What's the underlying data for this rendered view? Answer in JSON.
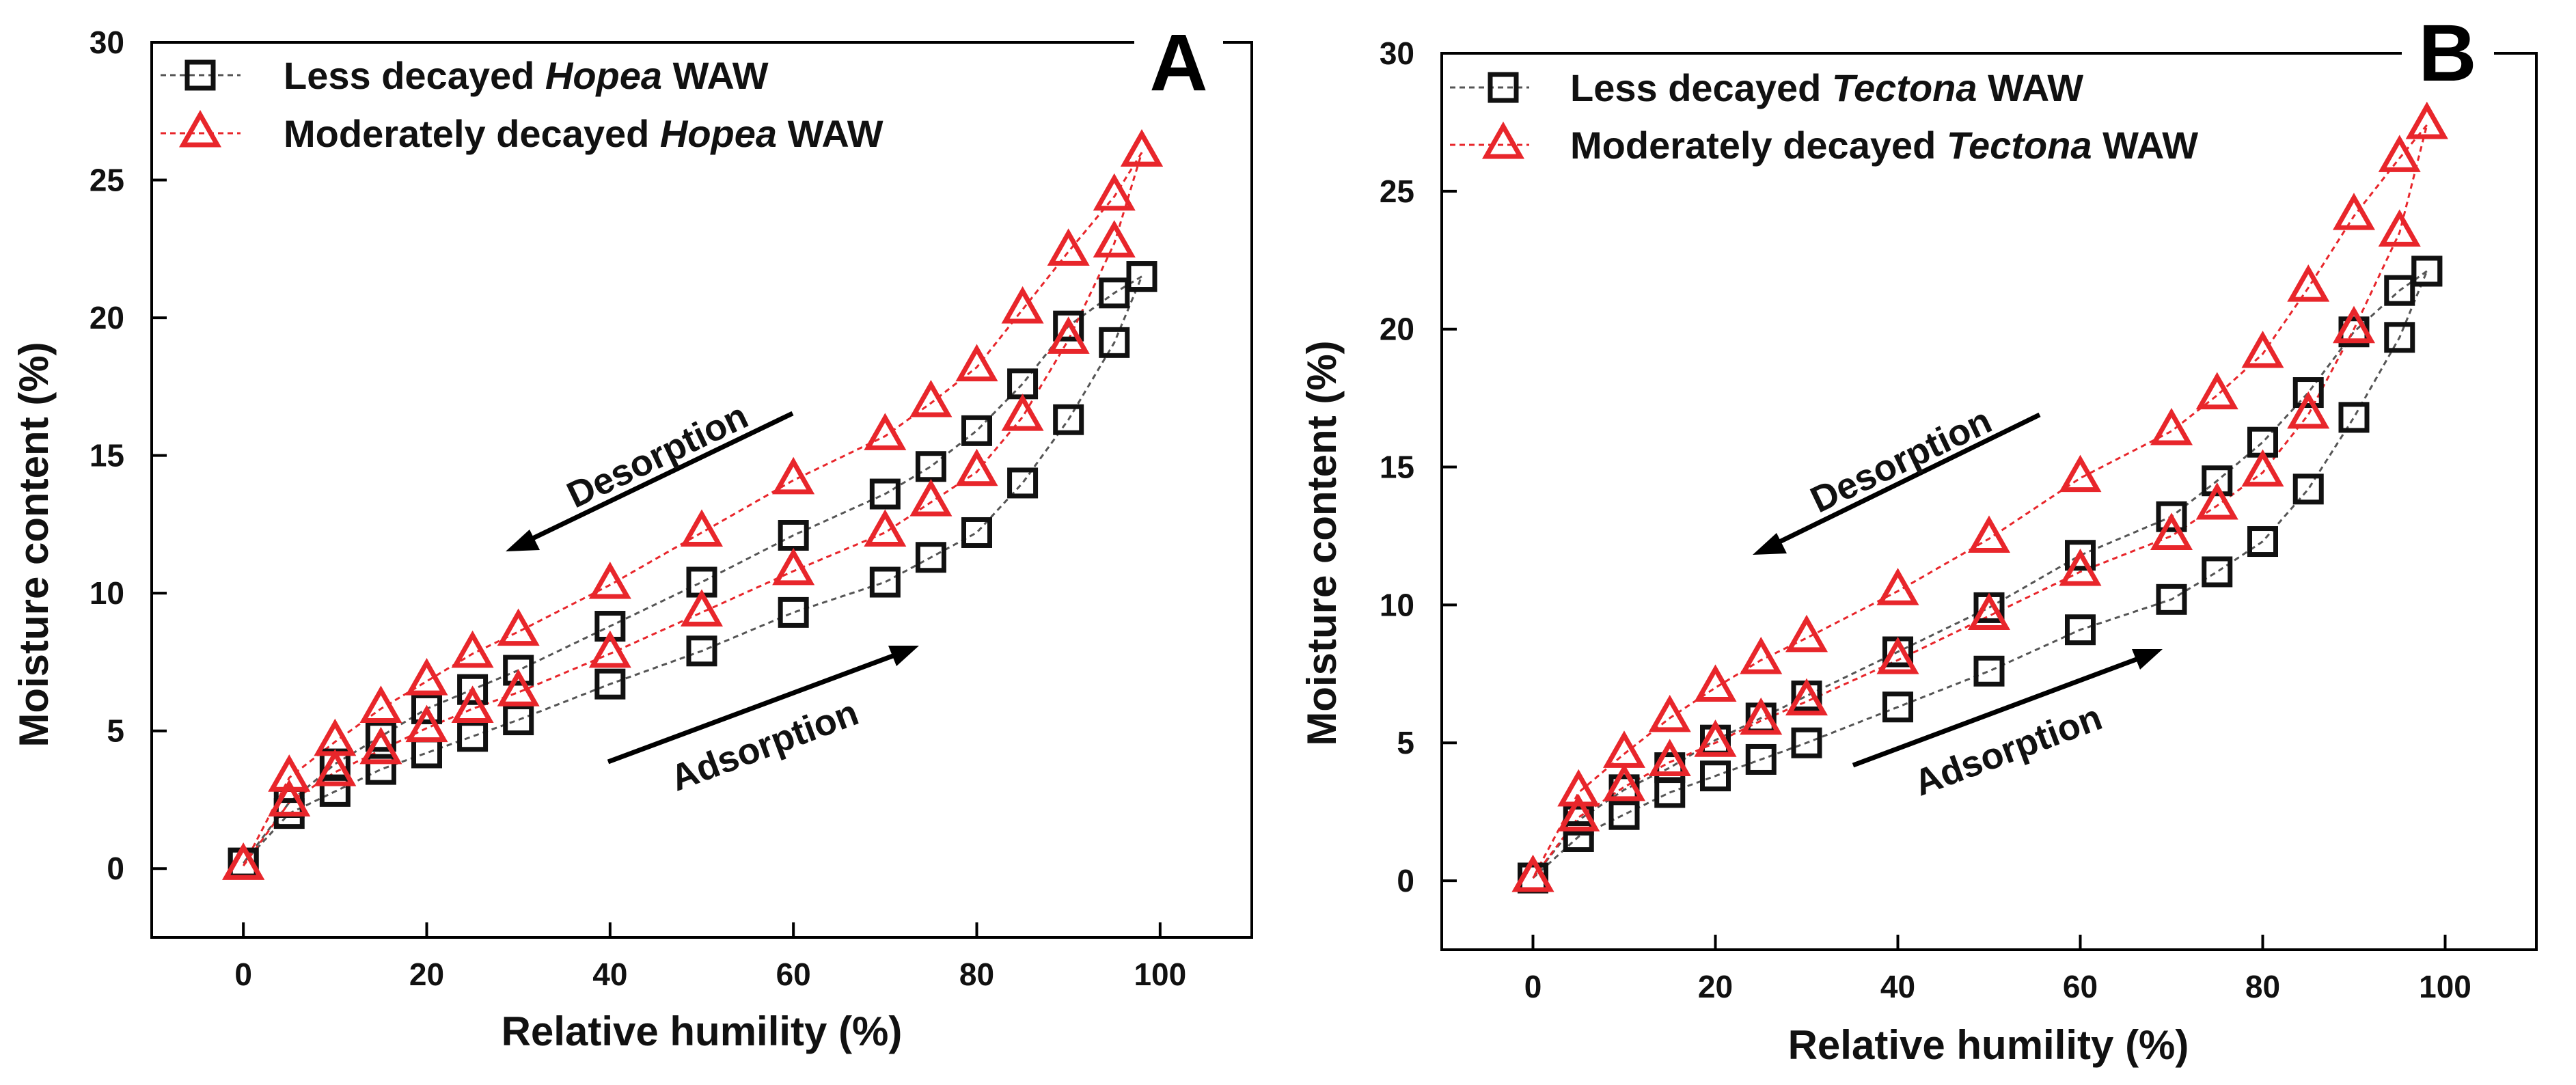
{
  "chart_data": [
    {
      "type": "scatter",
      "panel_label": "A",
      "xlabel": "Relative humility (%)",
      "ylabel": "Moisture content (%)",
      "xlim": [
        -10,
        110
      ],
      "ylim": [
        -2.5,
        30
      ],
      "x_ticks": [
        0,
        20,
        40,
        60,
        80,
        100
      ],
      "y_ticks": [
        0,
        5,
        10,
        15,
        20,
        25,
        30
      ],
      "grid": false,
      "legend_position": "top-left",
      "annotations": [
        {
          "text": "Desorption",
          "direction": "decreasing humidity"
        },
        {
          "text": "Adsorption",
          "direction": "increasing humidity"
        }
      ],
      "series": [
        {
          "legend_pre": "Less decayed ",
          "legend_italic": "Hopea",
          "legend_post": " WAW",
          "marker": "square",
          "color": "#111111",
          "line_color": "#555555",
          "adsorption": {
            "x": [
              0,
              5,
              10,
              15,
              20,
              25,
              30,
              40,
              50,
              60,
              70,
              75,
              80,
              85,
              90,
              95,
              98
            ],
            "y": [
              0.2,
              2.0,
              2.8,
              3.6,
              4.2,
              4.8,
              5.4,
              6.7,
              7.9,
              9.3,
              10.4,
              11.3,
              12.2,
              14.0,
              16.3,
              19.1,
              21.5
            ]
          },
          "desorption": {
            "x": [
              98,
              95,
              90,
              85,
              80,
              75,
              70,
              60,
              50,
              40,
              30,
              25,
              20,
              15,
              10,
              5,
              0
            ],
            "y": [
              21.5,
              20.9,
              19.7,
              17.6,
              15.9,
              14.6,
              13.6,
              12.1,
              10.4,
              8.8,
              7.2,
              6.5,
              5.8,
              4.8,
              3.8,
              2.4,
              0.2
            ]
          }
        },
        {
          "legend_pre": "Moderately decayed ",
          "legend_italic": "Hopea",
          "legend_post": " WAW",
          "marker": "triangle",
          "color": "#e8262b",
          "line_color": "#e8262b",
          "adsorption": {
            "x": [
              0,
              5,
              10,
              15,
              20,
              25,
              30,
              40,
              50,
              60,
              70,
              75,
              80,
              85,
              90,
              95,
              98
            ],
            "y": [
              0.1,
              2.4,
              3.5,
              4.3,
              5.1,
              5.8,
              6.4,
              7.8,
              9.3,
              10.8,
              12.2,
              13.3,
              14.4,
              16.4,
              19.2,
              22.7,
              26.0
            ]
          },
          "desorption": {
            "x": [
              98,
              95,
              90,
              85,
              80,
              75,
              70,
              60,
              50,
              40,
              30,
              25,
              20,
              15,
              10,
              5,
              0
            ],
            "y": [
              26.0,
              24.4,
              22.4,
              20.3,
              18.2,
              16.9,
              15.7,
              14.1,
              12.2,
              10.3,
              8.6,
              7.8,
              6.8,
              5.8,
              4.6,
              3.3,
              0.1
            ]
          }
        }
      ]
    },
    {
      "type": "scatter",
      "panel_label": "B",
      "xlabel": "Relative humility (%)",
      "ylabel": "Moisture content (%)",
      "xlim": [
        -10,
        110
      ],
      "ylim": [
        -2.5,
        30
      ],
      "x_ticks": [
        0,
        20,
        40,
        60,
        80,
        100
      ],
      "y_ticks": [
        0,
        5,
        10,
        15,
        20,
        25,
        30
      ],
      "grid": false,
      "legend_position": "top-left",
      "annotations": [
        {
          "text": "Desorption",
          "direction": "decreasing humidity"
        },
        {
          "text": "Adsorption",
          "direction": "increasing humidity"
        }
      ],
      "series": [
        {
          "legend_pre": "Less decayed ",
          "legend_italic": "Tectona",
          "legend_post": " WAW",
          "marker": "square",
          "color": "#111111",
          "line_color": "#555555",
          "adsorption": {
            "x": [
              0,
              5,
              10,
              15,
              20,
              25,
              30,
              40,
              50,
              60,
              70,
              75,
              80,
              85,
              90,
              95,
              98
            ],
            "y": [
              0.1,
              1.6,
              2.4,
              3.2,
              3.8,
              4.4,
              5.0,
              6.3,
              7.6,
              9.1,
              10.2,
              11.2,
              12.3,
              14.2,
              16.8,
              19.7,
              22.1
            ]
          },
          "desorption": {
            "x": [
              98,
              95,
              90,
              85,
              80,
              75,
              70,
              60,
              50,
              40,
              30,
              25,
              20,
              15,
              10,
              5,
              0
            ],
            "y": [
              22.1,
              21.4,
              19.9,
              17.7,
              15.9,
              14.5,
              13.2,
              11.8,
              9.9,
              8.3,
              6.7,
              5.9,
              5.1,
              4.1,
              3.3,
              2.2,
              0.1
            ]
          }
        },
        {
          "legend_pre": "Moderately decayed ",
          "legend_italic": "Tectona",
          "legend_post": " WAW",
          "marker": "triangle",
          "color": "#e8262b",
          "line_color": "#e8262b",
          "adsorption": {
            "x": [
              0,
              5,
              10,
              15,
              20,
              25,
              30,
              40,
              50,
              60,
              70,
              75,
              80,
              85,
              90,
              95,
              98
            ],
            "y": [
              0.1,
              2.3,
              3.4,
              4.3,
              5.0,
              5.8,
              6.5,
              8.0,
              9.6,
              11.2,
              12.5,
              13.6,
              14.8,
              16.9,
              20.0,
              23.5,
              27.4
            ]
          },
          "desorption": {
            "x": [
              98,
              95,
              90,
              85,
              80,
              75,
              70,
              60,
              50,
              40,
              30,
              25,
              20,
              15,
              10,
              5,
              0
            ],
            "y": [
              27.4,
              26.2,
              24.1,
              21.5,
              19.1,
              17.6,
              16.3,
              14.6,
              12.4,
              10.5,
              8.8,
              8.0,
              7.0,
              5.9,
              4.6,
              3.2,
              0.1
            ]
          }
        }
      ]
    }
  ]
}
